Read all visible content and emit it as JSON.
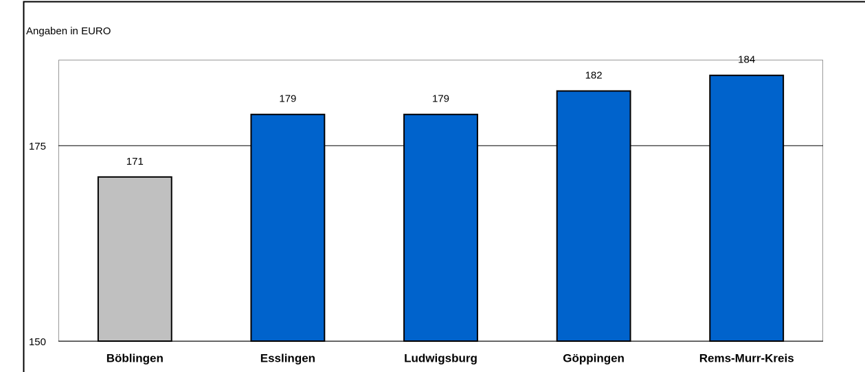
{
  "chart_data": {
    "type": "bar",
    "y_label": "Angaben in EURO",
    "categories": [
      "Böblingen",
      "Esslingen",
      "Ludwigsburg",
      "Göppingen",
      "Rems-Murr-Kreis"
    ],
    "values": [
      171,
      179,
      179,
      182,
      184
    ],
    "colors": [
      "#c0c0c0",
      "#0063cc",
      "#0063cc",
      "#0063cc",
      "#0063cc"
    ],
    "ylim": [
      150,
      186
    ],
    "yticks": [
      150,
      175
    ],
    "grid": true
  }
}
